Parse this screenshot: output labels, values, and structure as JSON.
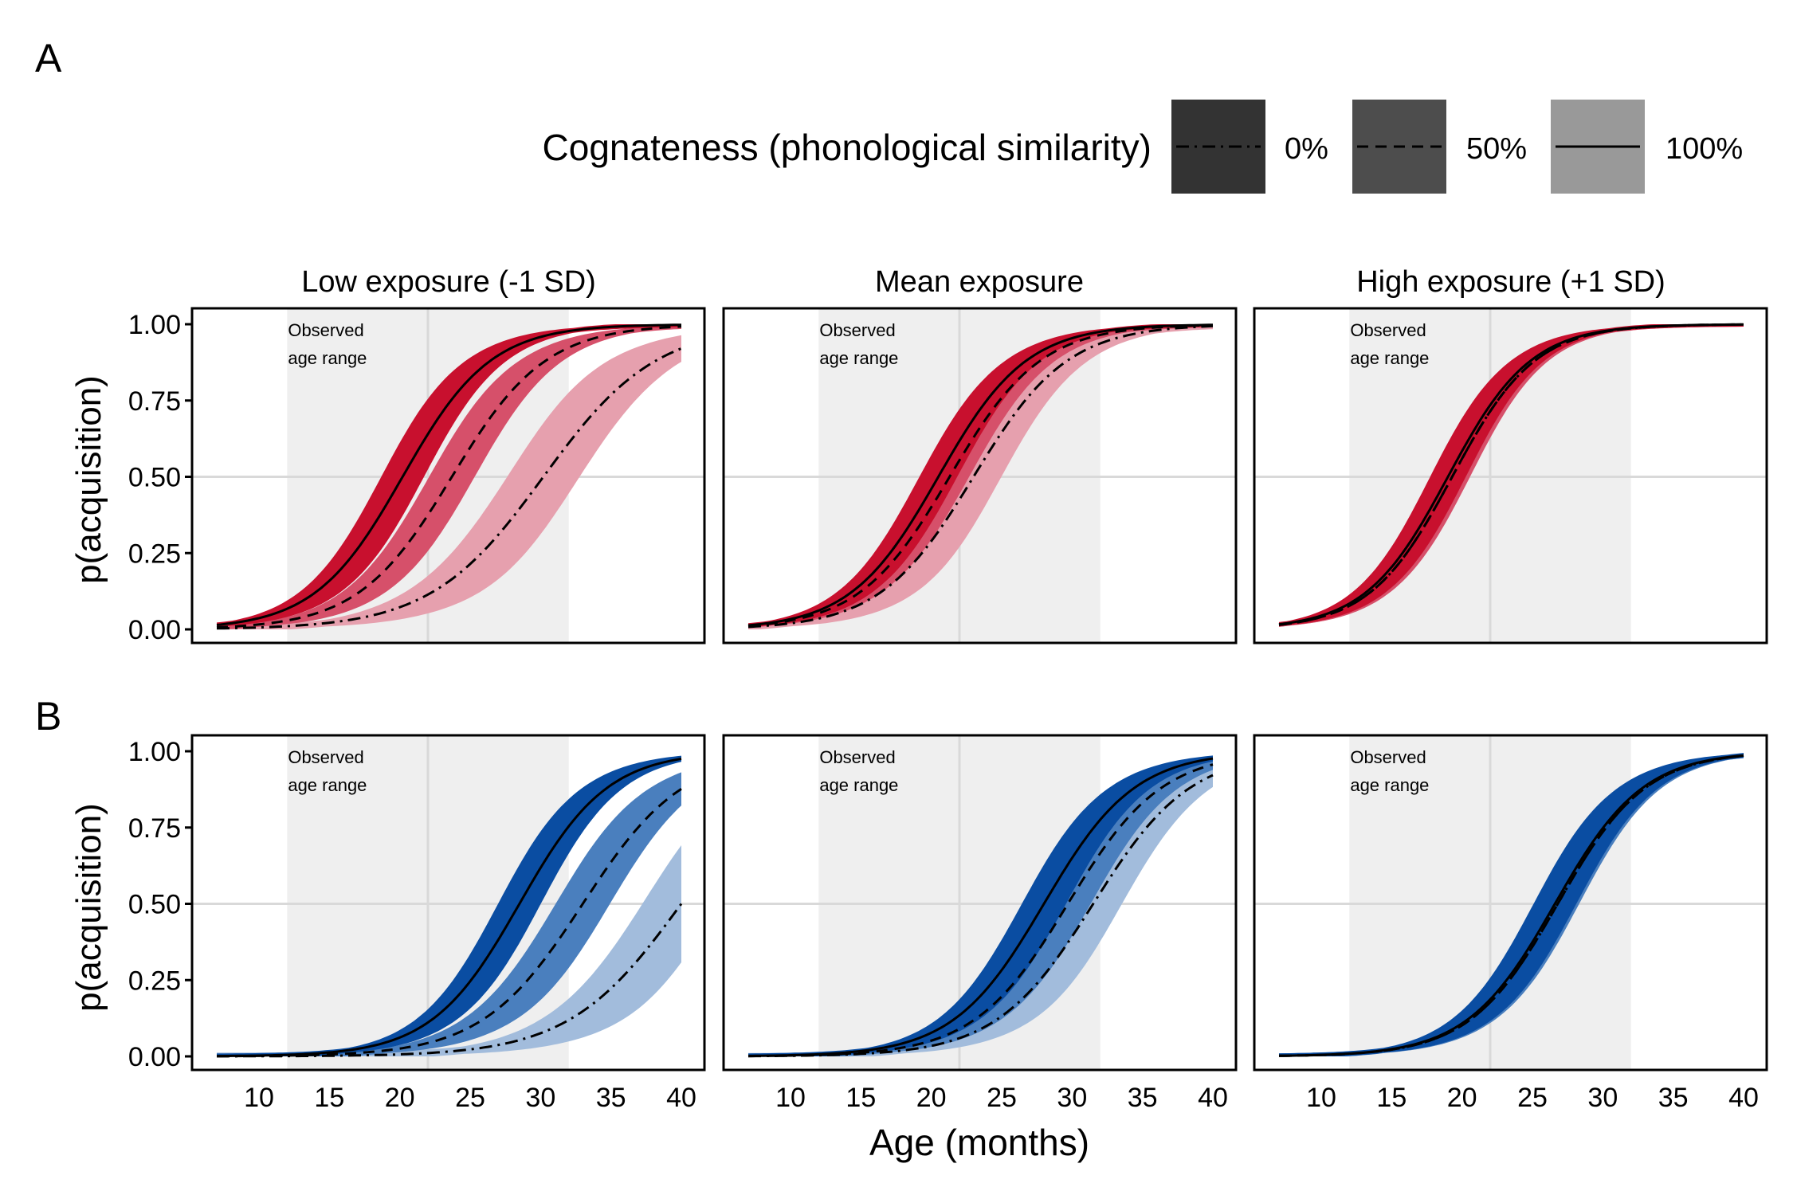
{
  "figure": {
    "legend_title": "Cognateness (phonological similarity)",
    "legend_entries": [
      {
        "label": "0%",
        "linetype": "dotdash",
        "key_fill": "#333333"
      },
      {
        "label": "50%",
        "linetype": "dashed",
        "key_fill": "#4d4d4d"
      },
      {
        "label": "100%",
        "linetype": "solid",
        "key_fill": "#999999"
      }
    ],
    "panel_tags": [
      "A",
      "B"
    ],
    "facets": [
      "Low exposure (-1 SD)",
      "Mean exposure",
      "High exposure (+1 SD)"
    ],
    "annotation": [
      "Observed",
      "age range"
    ],
    "ylabel": "p(acquisition)",
    "xlabel": "Age (months)",
    "x_ticks": [
      "10",
      "15",
      "20",
      "25",
      "30",
      "35",
      "40"
    ],
    "y_ticks": [
      "0.00",
      "0.25",
      "0.50",
      "0.75",
      "1.00"
    ]
  },
  "colors": {
    "red": [
      "#C8102E",
      "#D6506A",
      "#E6A0AE"
    ],
    "blue": [
      "#0A4DA2",
      "#4A7FBE",
      "#A2BCDC"
    ],
    "observed_band": "#EFEFEF",
    "grid": "#D9D9D9"
  },
  "chart_data": {
    "type": "line",
    "x_range": [
      7,
      40
    ],
    "ylim": [
      0,
      1
    ],
    "observed_age_range": [
      12,
      32
    ],
    "grid_x": [
      22
    ],
    "grid_y": [
      0.5
    ],
    "rows": [
      {
        "tag": "A",
        "palette": "red",
        "panels": [
          {
            "facet": "Low exposure (-1 SD)",
            "series": [
              {
                "label": "0%",
                "mid": 30.2,
                "k": 0.25,
                "band": 0.055
              },
              {
                "label": "50%",
                "mid": 23.7,
                "k": 0.3,
                "band": 0.04
              },
              {
                "label": "100%",
                "mid": 20.2,
                "k": 0.32,
                "band": 0.04
              }
            ]
          },
          {
            "facet": "Mean exposure",
            "series": [
              {
                "label": "0%",
                "mid": 23.0,
                "k": 0.3,
                "band": 0.05
              },
              {
                "label": "50%",
                "mid": 21.3,
                "k": 0.31,
                "band": 0.035
              },
              {
                "label": "100%",
                "mid": 20.5,
                "k": 0.32,
                "band": 0.035
              }
            ]
          },
          {
            "facet": "High exposure (+1 SD)",
            "series": [
              {
                "label": "0%",
                "mid": 19.3,
                "k": 0.34,
                "band": 0.035
              },
              {
                "label": "50%",
                "mid": 19.3,
                "k": 0.34,
                "band": 0.035
              },
              {
                "label": "100%",
                "mid": 19.0,
                "k": 0.34,
                "band": 0.035
              }
            ]
          }
        ]
      },
      {
        "tag": "B",
        "palette": "blue",
        "panels": [
          {
            "facet": "Low exposure (-1 SD)",
            "series": [
              {
                "label": "0%",
                "mid": 40.0,
                "k": 0.25,
                "band": 0.06
              },
              {
                "label": "50%",
                "mid": 33.0,
                "k": 0.28,
                "band": 0.045
              },
              {
                "label": "100%",
                "mid": 28.5,
                "k": 0.32,
                "band": 0.04
              }
            ]
          },
          {
            "facet": "Mean exposure",
            "series": [
              {
                "label": "0%",
                "mid": 31.5,
                "k": 0.29,
                "band": 0.05
              },
              {
                "label": "50%",
                "mid": 29.7,
                "k": 0.3,
                "band": 0.04
              },
              {
                "label": "100%",
                "mid": 28.0,
                "k": 0.31,
                "band": 0.04
              }
            ]
          },
          {
            "facet": "High exposure (+1 SD)",
            "series": [
              {
                "label": "0%",
                "mid": 26.8,
                "k": 0.32,
                "band": 0.04
              },
              {
                "label": "50%",
                "mid": 26.8,
                "k": 0.32,
                "band": 0.04
              },
              {
                "label": "100%",
                "mid": 26.6,
                "k": 0.32,
                "band": 0.04
              }
            ]
          }
        ]
      }
    ]
  }
}
